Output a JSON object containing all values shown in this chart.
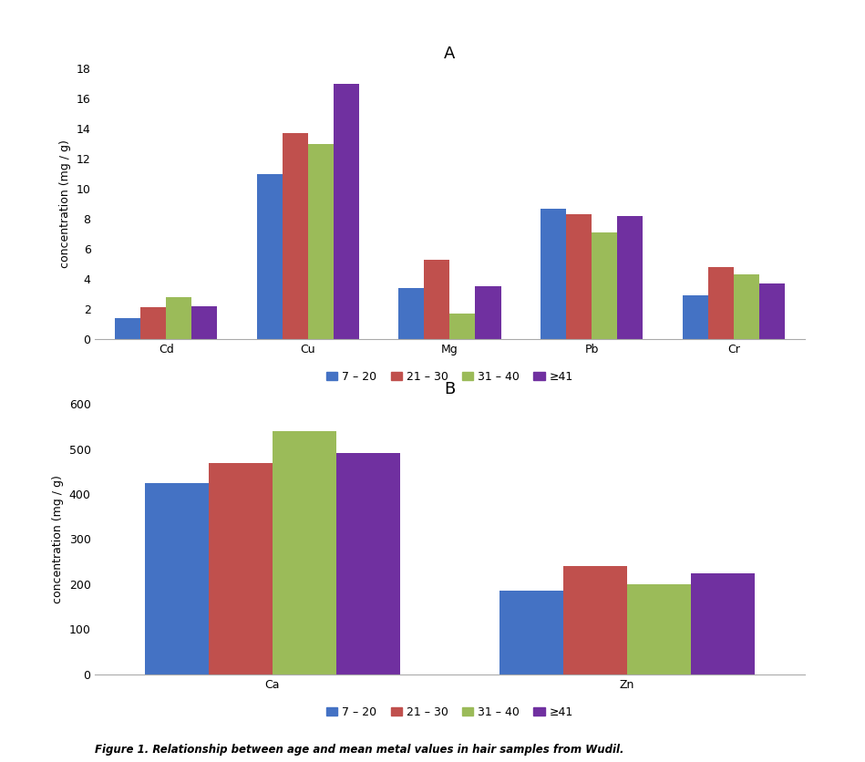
{
  "chart_A": {
    "title": "A",
    "categories": [
      "Cd",
      "Cu",
      "Mg",
      "Pb",
      "Cr"
    ],
    "series": {
      "7 – 20": [
        1.4,
        11.0,
        3.4,
        8.7,
        2.9
      ],
      "21 – 30": [
        2.1,
        13.7,
        5.3,
        8.3,
        4.8
      ],
      "31 – 40": [
        2.8,
        13.0,
        1.7,
        7.1,
        4.3
      ],
      "≥41": [
        2.2,
        17.0,
        3.5,
        8.2,
        3.7
      ]
    },
    "ylabel": "concentration (mg / g)",
    "ylim": [
      0,
      18
    ],
    "yticks": [
      0,
      2,
      4,
      6,
      8,
      10,
      12,
      14,
      16,
      18
    ]
  },
  "chart_B": {
    "title": "B",
    "categories": [
      "Ca",
      "Zn"
    ],
    "series": {
      "7 – 20": [
        425,
        185
      ],
      "21 – 30": [
        468,
        240
      ],
      "31 – 40": [
        540,
        200
      ],
      "≥41": [
        490,
        225
      ]
    },
    "ylabel": "concentration (mg / g)",
    "ylim": [
      0,
      600
    ],
    "yticks": [
      0,
      100,
      200,
      300,
      400,
      500,
      600
    ]
  },
  "colors": {
    "7 – 20": "#4472C4",
    "21 – 30": "#C0504D",
    "31 – 40": "#9BBB59",
    "≥41": "#7030A0"
  },
  "legend_labels": [
    "7 – 20",
    "21 – 30",
    "31 – 40",
    "≥41"
  ],
  "figure_caption": "Figure 1. Relationship between age and mean metal values in hair samples from Wudil.",
  "bar_width": 0.18,
  "background_color": "#ffffff",
  "title_fontsize": 13,
  "axis_fontsize": 9,
  "tick_fontsize": 9,
  "legend_fontsize": 9
}
